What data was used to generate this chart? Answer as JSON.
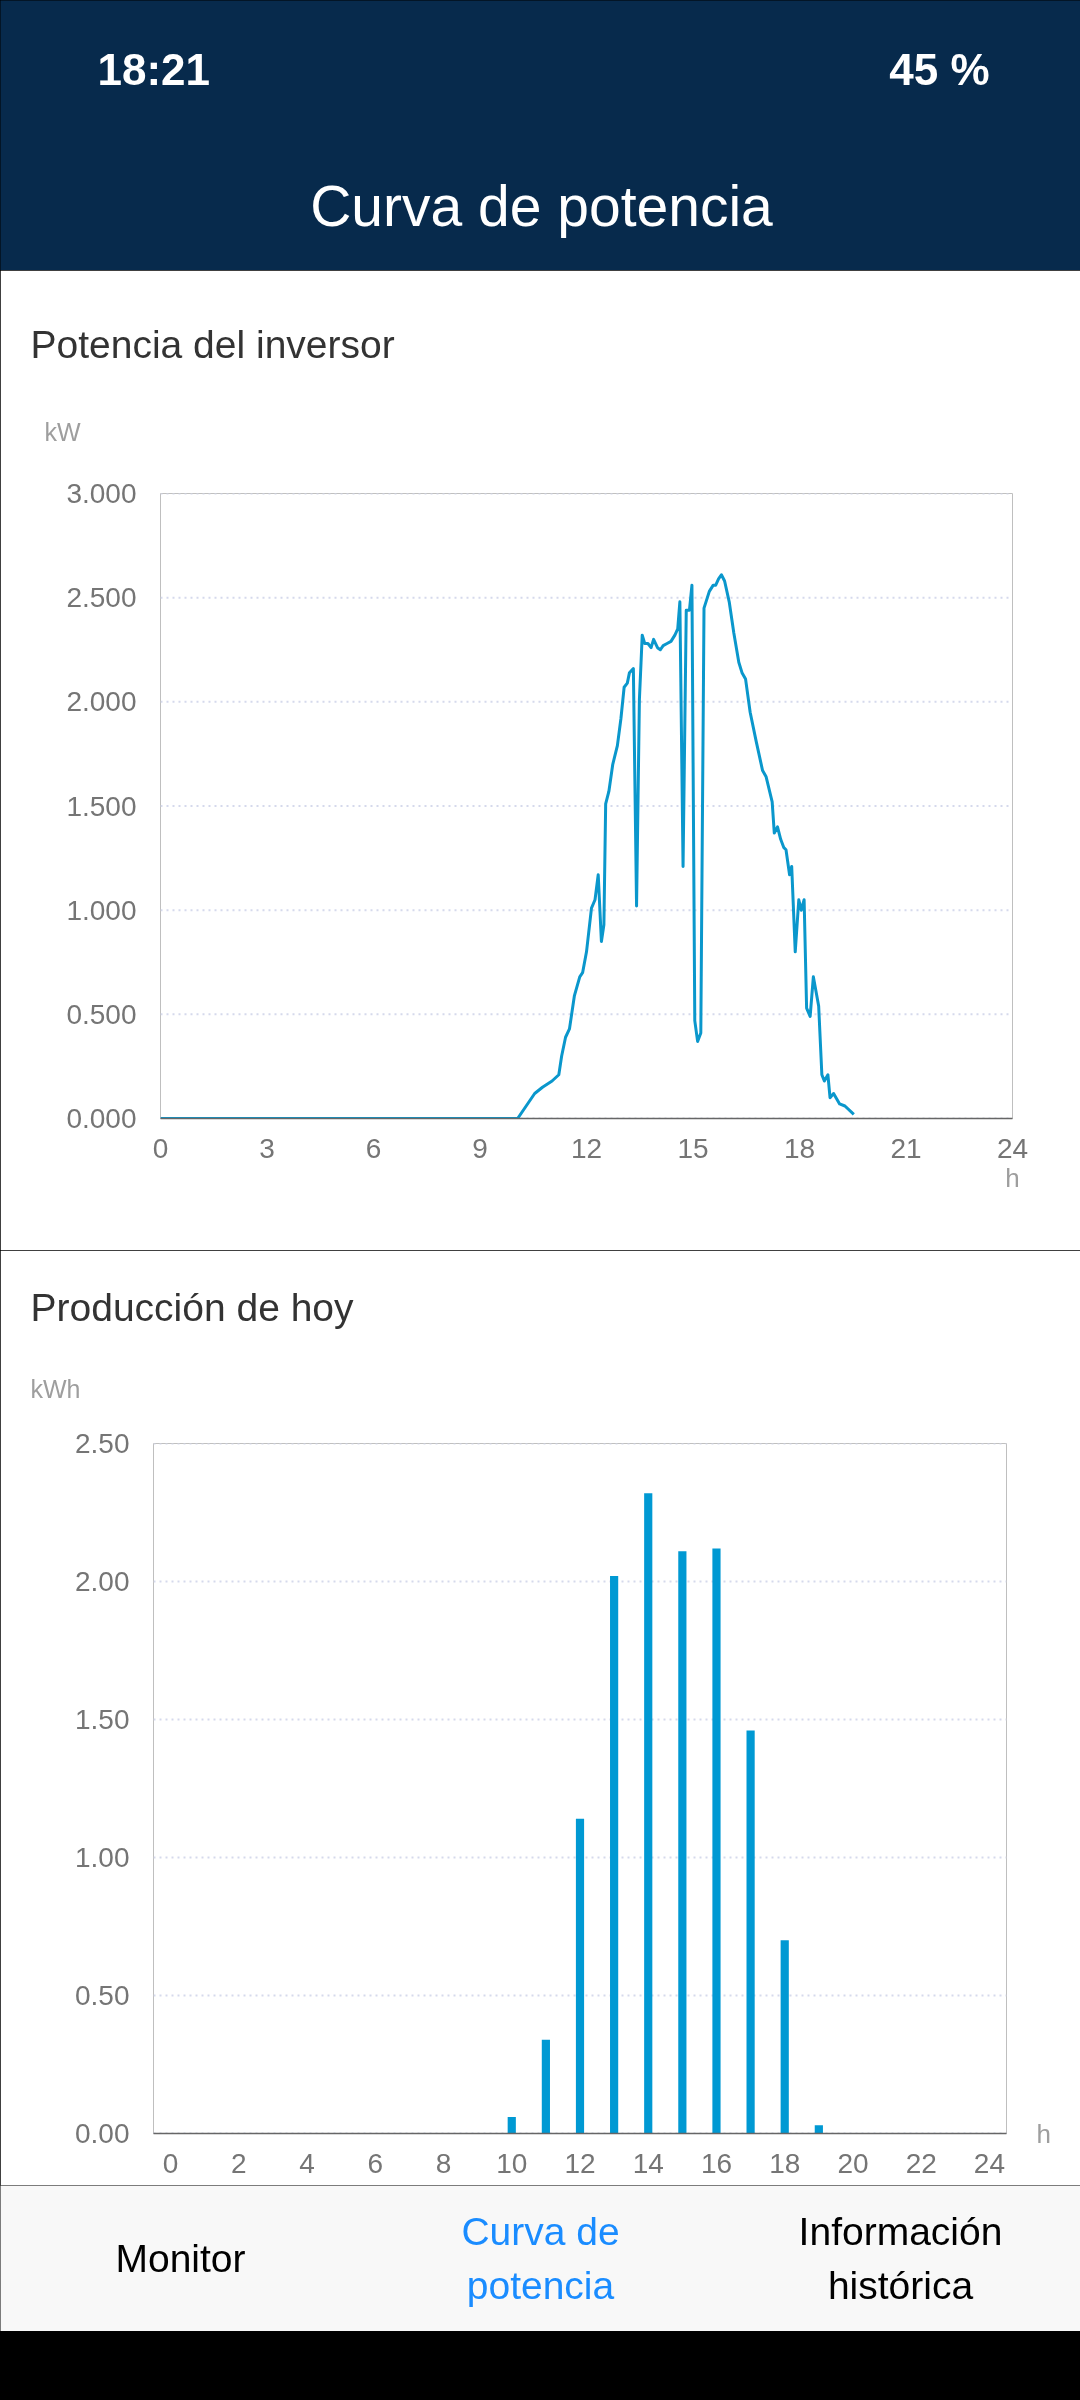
{
  "chart_data": [
    {
      "type": "other",
      "title": "Curva de potencia",
      "annotations": [
        "18:21",
        "45 %"
      ]
    },
    {
      "type": "line",
      "title": "Potencia del inversor",
      "ylabel": "kW",
      "xlabel": "h",
      "color": "#0a97cc",
      "x": [
        0,
        10.06,
        10.54,
        10.76,
        11.03,
        11.22,
        11.3,
        11.41,
        11.52,
        11.66,
        11.81,
        11.89,
        12.0,
        12.14,
        12.24,
        12.33,
        12.42,
        12.49,
        12.54,
        12.63,
        12.74,
        12.87,
        12.97,
        13.06,
        13.15,
        13.21,
        13.32,
        13.41,
        13.49,
        13.57,
        13.64,
        13.73,
        13.82,
        13.89,
        14.0,
        14.08,
        14.16,
        14.27,
        14.38,
        14.49,
        14.57,
        14.63,
        14.72,
        14.81,
        14.9,
        14.97,
        15.05,
        15.13,
        15.22,
        15.31,
        15.46,
        15.57,
        15.64,
        15.72,
        15.8,
        15.89,
        16.02,
        16.15,
        16.29,
        16.38,
        16.48,
        16.61,
        16.78,
        16.96,
        17.06,
        17.23,
        17.29,
        17.38,
        17.47,
        17.56,
        17.62,
        17.72,
        17.78,
        17.88,
        17.98,
        18.05,
        18.13,
        18.2,
        18.3,
        18.39,
        18.54,
        18.63,
        18.7,
        18.8,
        18.86,
        18.96,
        19.13,
        19.28,
        19.53
      ],
      "values": [
        0,
        0,
        0.12,
        0.15,
        0.18,
        0.21,
        0.3,
        0.39,
        0.43,
        0.59,
        0.68,
        0.7,
        0.8,
        1.01,
        1.05,
        1.17,
        0.85,
        0.93,
        1.51,
        1.57,
        1.7,
        1.79,
        1.92,
        2.07,
        2.09,
        2.14,
        2.16,
        1.02,
        2.01,
        2.32,
        2.28,
        2.28,
        2.26,
        2.3,
        2.26,
        2.25,
        2.27,
        2.28,
        2.29,
        2.32,
        2.35,
        2.48,
        1.21,
        2.44,
        2.44,
        2.56,
        0.47,
        0.37,
        0.41,
        2.45,
        2.53,
        2.56,
        2.56,
        2.59,
        2.61,
        2.58,
        2.48,
        2.33,
        2.19,
        2.14,
        2.11,
        1.95,
        1.81,
        1.67,
        1.64,
        1.52,
        1.37,
        1.4,
        1.34,
        1.3,
        1.29,
        1.17,
        1.21,
        0.8,
        1.05,
        1.0,
        1.05,
        0.53,
        0.49,
        0.68,
        0.54,
        0.21,
        0.18,
        0.21,
        0.1,
        0.12,
        0.07,
        0.06,
        0.02
      ],
      "xlim": [
        0,
        24
      ],
      "xticks": [
        0,
        3,
        6,
        9,
        12,
        15,
        18,
        21,
        24
      ],
      "ylim": [
        0,
        3
      ],
      "yticks": [
        {
          "value": 0,
          "label": "0.000"
        },
        {
          "value": 0.5,
          "label": "0.500"
        },
        {
          "value": 1,
          "label": "1.000"
        },
        {
          "value": 1.5,
          "label": "1.500"
        },
        {
          "value": 2,
          "label": "2.000"
        },
        {
          "value": 2.5,
          "label": "2.500"
        },
        {
          "value": 3,
          "label": "3.000"
        }
      ],
      "grid": "y"
    },
    {
      "type": "bar",
      "title": "Producción de hoy",
      "ylabel": "kWh",
      "xlabel": "h",
      "color": "#0099d3",
      "x": [
        10,
        11,
        12,
        13,
        14,
        15,
        16,
        17,
        18,
        19
      ],
      "values": [
        0.06,
        0.34,
        1.14,
        2.02,
        2.32,
        2.11,
        2.12,
        1.46,
        0.7,
        0.03
      ],
      "xlim": [
        -0.5,
        24.5
      ],
      "xticks": [
        0,
        2,
        4,
        6,
        8,
        10,
        12,
        14,
        16,
        18,
        20,
        22,
        24
      ],
      "ylim": [
        0,
        2.5
      ],
      "yticks": [
        {
          "value": 0,
          "label": "0.00"
        },
        {
          "value": 0.5,
          "label": "0.50"
        },
        {
          "value": 1,
          "label": "1.00"
        },
        {
          "value": 1.5,
          "label": "1.50"
        },
        {
          "value": 2,
          "label": "2.00"
        },
        {
          "value": 2.5,
          "label": "2.50"
        }
      ],
      "grid": "y"
    },
    {
      "type": "other",
      "annotations": [
        "Monitor",
        "Curva de potencia",
        "Información histórica"
      ],
      "colors": [
        "#000000",
        "#1a8cff",
        "#000000"
      ]
    }
  ]
}
